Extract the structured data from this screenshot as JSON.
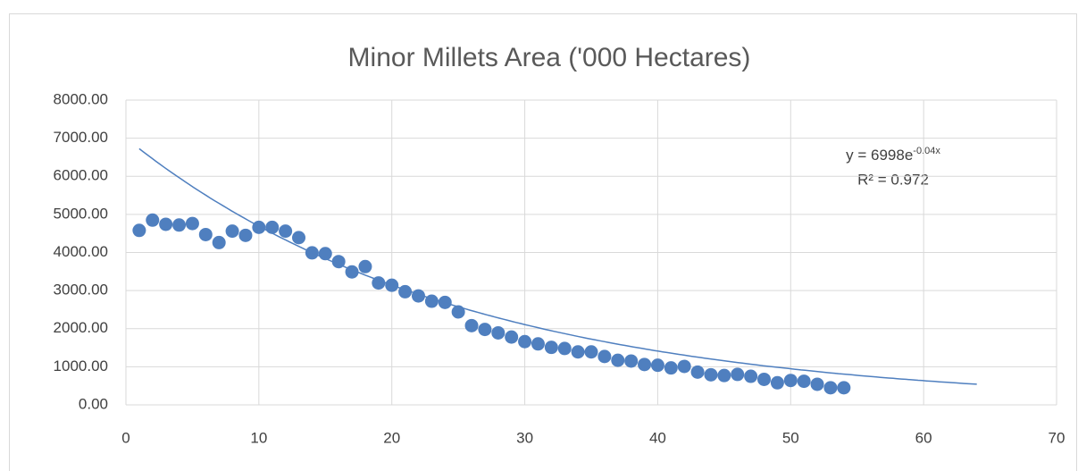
{
  "chart_data": {
    "type": "scatter",
    "title": "Minor Millets Area ('000 Hectares)",
    "series": [
      {
        "color": "#4f7fbf",
        "x": [
          1,
          2,
          3,
          4,
          5,
          6,
          7,
          8,
          9,
          10,
          11,
          12,
          13,
          14,
          15,
          16,
          17,
          18,
          19,
          20,
          21,
          22,
          23,
          24,
          25,
          26,
          27,
          28,
          29,
          30,
          31,
          32,
          33,
          34,
          35,
          36,
          37,
          38,
          39,
          40,
          41,
          42,
          43,
          44,
          45,
          46,
          47,
          48,
          49,
          50,
          51,
          52,
          53,
          54
        ],
        "values": [
          4580,
          4850,
          4740,
          4720,
          4760,
          4470,
          4260,
          4560,
          4450,
          4660,
          4660,
          4560,
          4390,
          3990,
          3970,
          3760,
          3490,
          3630,
          3200,
          3140,
          2970,
          2860,
          2720,
          2690,
          2440,
          2080,
          1980,
          1890,
          1780,
          1660,
          1600,
          1510,
          1480,
          1390,
          1390,
          1270,
          1170,
          1150,
          1060,
          1040,
          970,
          1010,
          860,
          790,
          770,
          800,
          750,
          670,
          580,
          640,
          620,
          540,
          450,
          450
        ]
      }
    ],
    "trendline": {
      "a": 6998,
      "b": -0.04,
      "xrange": [
        1,
        64
      ],
      "color": "#4f7fbf",
      "equation_base": "y = 6998e",
      "equation_exponent": "-0.04x",
      "r_squared": "R² = 0.972"
    },
    "xlim": [
      0,
      70
    ],
    "xticks": [
      0,
      10,
      20,
      30,
      40,
      50,
      60,
      70
    ],
    "ylim": [
      0,
      8000
    ],
    "yticks": [
      {
        "value": 0,
        "label": "0.00"
      },
      {
        "value": 1000,
        "label": "1000.00"
      },
      {
        "value": 2000,
        "label": "2000.00"
      },
      {
        "value": 3000,
        "label": "3000.00"
      },
      {
        "value": 4000,
        "label": "4000.00"
      },
      {
        "value": 5000,
        "label": "5000.00"
      },
      {
        "value": 6000,
        "label": "6000.00"
      },
      {
        "value": 7000,
        "label": "7000.00"
      },
      {
        "value": 8000,
        "label": "8000.00"
      }
    ],
    "grid": true
  }
}
